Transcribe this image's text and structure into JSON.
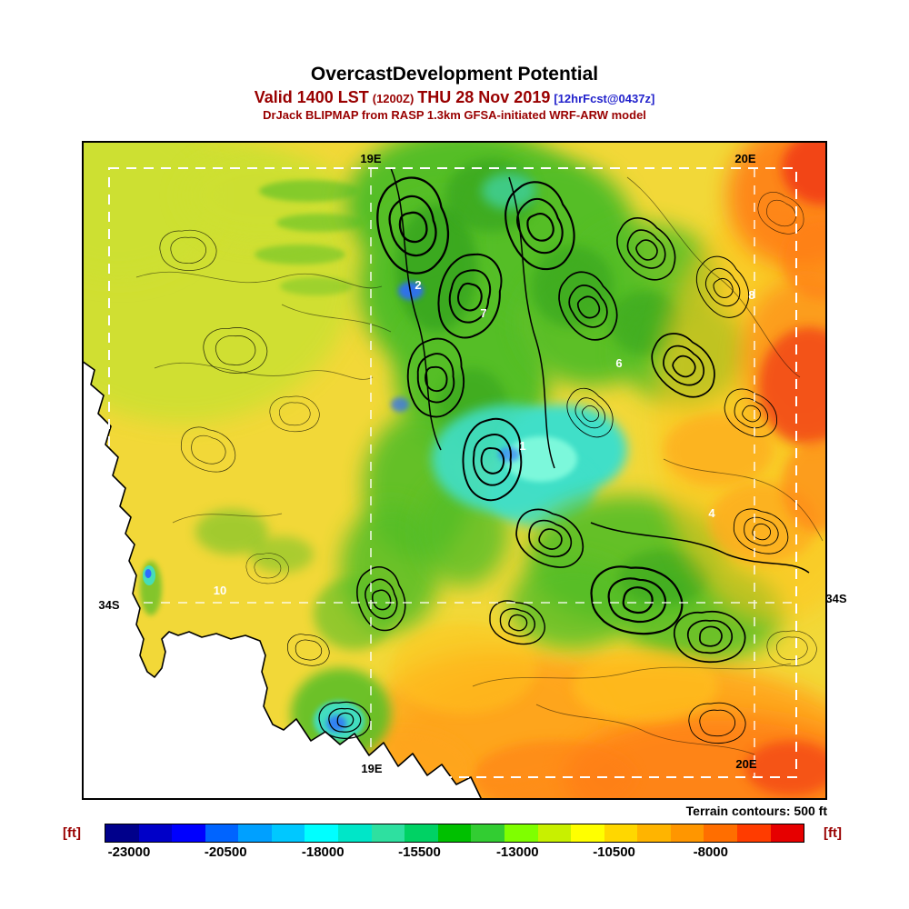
{
  "header": {
    "title": "OvercastDevelopment Potential",
    "valid_prefix": "Valid 1400 LST",
    "valid_zulu": "(1200Z)",
    "valid_date": "THU 28 Nov 2019",
    "valid_fcst": "[12hrFcst@0437z]",
    "model_line": "DrJack BLIPMAP from RASP 1.3km GFSA-initiated WRF-ARW model"
  },
  "map": {
    "grid_labels": {
      "top_meridian": "19E",
      "top_right_meridian": "20E",
      "left_parallel": "34S",
      "right_parallel": "34S",
      "bottom_meridian": "19E",
      "bottom_right_meridian": "20E"
    },
    "region_numbers": [
      "2",
      "7",
      "6",
      "1",
      "8",
      "4",
      "10"
    ],
    "terrain_note": "Terrain contours: 500 ft",
    "palette": {
      "base": "#F2D838",
      "yellow_green": "#CDE032",
      "green": "#55BE28",
      "dark_green": "#2F9E1E",
      "cyan": "#3FDFC8",
      "light_cyan": "#8CFFE0",
      "blue": "#2E6CFF",
      "gold": "#FFC41E",
      "orange": "#FFA51E",
      "deep_orange": "#FF7F14",
      "red": "#F03614",
      "ocean": "#FFFFFF",
      "contour": "#000000"
    }
  },
  "colorbar": {
    "unit_left": "[ft]",
    "unit_right": "[ft]",
    "ticks": [
      "-23000",
      "-20500",
      "-18000",
      "-15500",
      "-13000",
      "-10500",
      "-8000"
    ],
    "colors": [
      "#00008B",
      "#0000C8",
      "#0000FF",
      "#0064FF",
      "#00A0FF",
      "#00C8FF",
      "#00FFFF",
      "#00E6C8",
      "#2EE0A0",
      "#00D264",
      "#00C000",
      "#32CD32",
      "#7FFF00",
      "#C8F000",
      "#FFFF00",
      "#FFD700",
      "#FFB400",
      "#FF9600",
      "#FF6E00",
      "#FF3C00",
      "#E60000"
    ]
  }
}
